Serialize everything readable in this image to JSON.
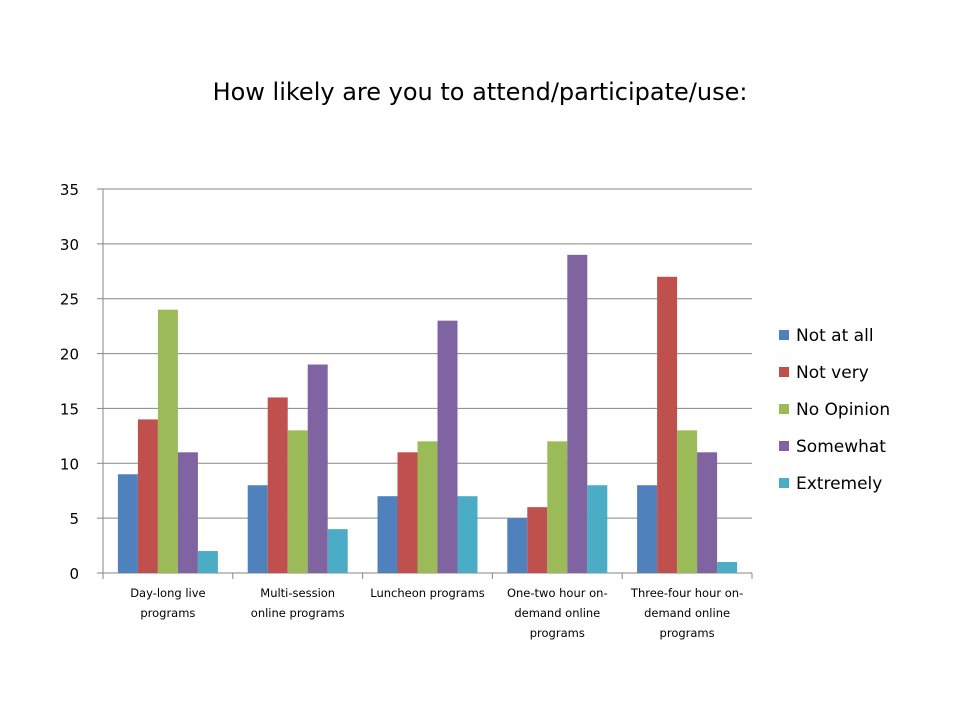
{
  "chart_data": {
    "type": "bar",
    "title": "How likely are you to attend/participate/use:",
    "categories": [
      [
        "Day-long live",
        "programs"
      ],
      [
        "Multi-session",
        "online programs"
      ],
      [
        "Luncheon programs"
      ],
      [
        "One-two hour on-",
        "demand online",
        "programs"
      ],
      [
        "Three-four hour on-",
        "demand online",
        "programs"
      ]
    ],
    "series": [
      {
        "name": "Not at all",
        "color": "#4F81BD",
        "values": [
          9,
          8,
          7,
          5,
          8
        ]
      },
      {
        "name": "Not very",
        "color": "#C0504D",
        "values": [
          14,
          16,
          11,
          6,
          27
        ]
      },
      {
        "name": "No Opinion",
        "color": "#9BBB59",
        "values": [
          24,
          13,
          12,
          12,
          13
        ]
      },
      {
        "name": "Somewhat",
        "color": "#8064A2",
        "values": [
          11,
          19,
          23,
          29,
          11
        ]
      },
      {
        "name": "Extremely",
        "color": "#4BACC6",
        "values": [
          2,
          4,
          7,
          8,
          1
        ]
      }
    ],
    "ylim": [
      0,
      35
    ],
    "yticks": [
      0,
      5,
      10,
      15,
      20,
      25,
      30,
      35
    ],
    "grid": true,
    "legend": "right"
  }
}
